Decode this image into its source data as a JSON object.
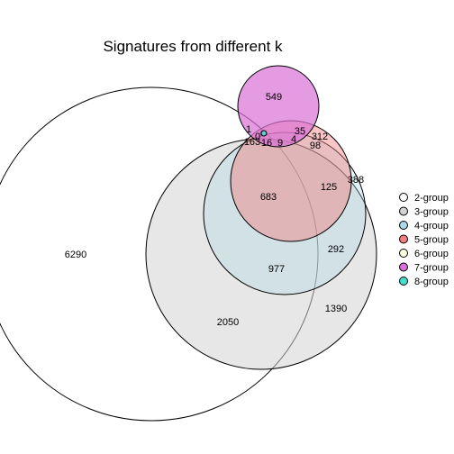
{
  "chart_data": {
    "type": "venn",
    "title": "Signatures from different k",
    "sets": [
      {
        "name": "2-group",
        "color": "#ffffff"
      },
      {
        "name": "3-group",
        "color": "#d3d3d3"
      },
      {
        "name": "4-group",
        "color": "#add8e6"
      },
      {
        "name": "5-group",
        "color": "#f08080"
      },
      {
        "name": "6-group",
        "color": "#ffffe0"
      },
      {
        "name": "7-group",
        "color": "#da70d6"
      },
      {
        "name": "8-group",
        "color": "#40e0d0"
      }
    ],
    "region_labels": [
      "549",
      "1",
      "35",
      "312",
      "0",
      "163",
      "16",
      "9",
      "4",
      "98",
      "388",
      "683",
      "125",
      "292",
      "977",
      "6290",
      "2050",
      "1390"
    ],
    "legend_position": "right"
  }
}
